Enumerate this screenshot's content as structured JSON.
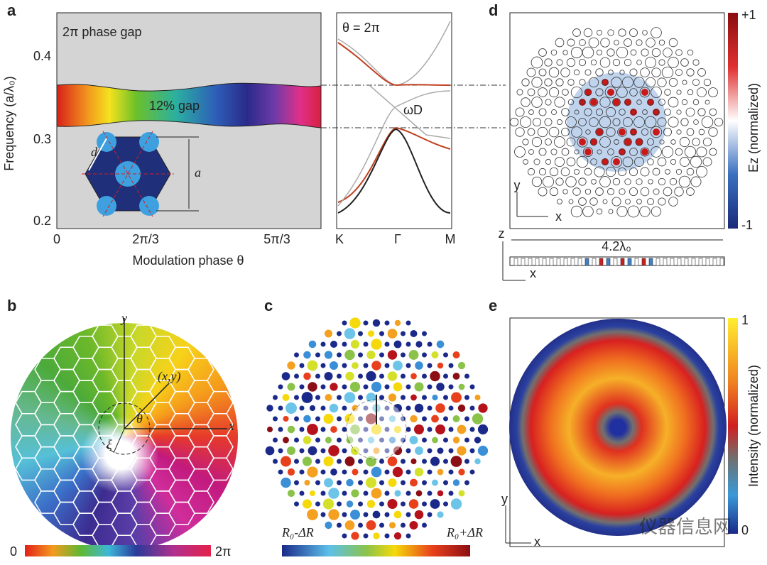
{
  "panels": {
    "a": {
      "label": "a",
      "y_axis_label": "Frequency (a/λ₀)",
      "y_ticks": [
        "0.4",
        "0.3",
        "0.2"
      ],
      "x_ticks": [
        "0",
        "2π/3",
        "5π/3"
      ],
      "x_axis_label": "Modulation phase θ",
      "phase_gap": "2π phase gap",
      "gap": "12% gap",
      "inset_d": "d",
      "inset_a": "a",
      "band_title": "θ = 2π",
      "dirac": "ωD",
      "band_ticks": [
        "K",
        "Γ",
        "M"
      ]
    },
    "b": {
      "label": "b",
      "axis_y": "y",
      "axis_x": "x",
      "point": "(x,y)",
      "angle": "θ",
      "radius": "ξ",
      "colorbar_min": "0",
      "colorbar_max": "2π"
    },
    "c": {
      "label": "c",
      "colorbar_min": "R₀-ΔR",
      "colorbar_max": "R₀+ΔR"
    },
    "d": {
      "label": "d",
      "colorbar_max": "+1",
      "colorbar_min": "-1",
      "colorbar_label": "Ez (normalized)",
      "axis_y": "y",
      "axis_x": "x",
      "side_z": "z",
      "side_x": "x",
      "width": "4.2λ₀"
    },
    "e": {
      "label": "e",
      "colorbar_max": "1",
      "colorbar_min": "0",
      "colorbar_label": "Intensity (normalized)",
      "axis_y": "y",
      "axis_x": "x"
    }
  },
  "watermark": "仪器信息网"
}
